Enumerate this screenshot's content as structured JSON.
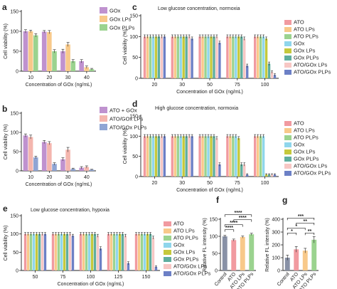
{
  "colors": {
    "axis": "#222222",
    "pink": "#f19aa0",
    "orange": "#f8c98a",
    "green": "#9bd38f",
    "purple": "#bf92cf",
    "salmon": "#f4b6ae",
    "blue": "#8fa5d4",
    "lightblue": "#8fd6ec",
    "olive": "#c5c93c",
    "teal": "#5fae9f",
    "lightpink": "#f7c7c4",
    "navy": "#6c80c6",
    "gray": "#8891a6"
  },
  "chart_data": [
    {
      "id": "a",
      "type": "bar",
      "panel_label": "a",
      "categories": [
        "10",
        "20",
        "30",
        "40"
      ],
      "series": [
        {
          "name": "GOx",
          "color": "purple",
          "values": [
            100,
            99,
            50,
            25
          ],
          "errors": [
            4,
            3,
            5,
            4
          ]
        },
        {
          "name": "GOx LPs",
          "color": "orange",
          "values": [
            100,
            98,
            67,
            10
          ],
          "errors": [
            3,
            4,
            5,
            3
          ]
        },
        {
          "name": "GOx PLPs",
          "color": "green",
          "values": [
            90,
            50,
            25,
            5
          ],
          "errors": [
            4,
            4,
            4,
            2
          ]
        }
      ],
      "xlabel": "Concentration of GOx (ng/mL)",
      "ylabel": "Cell viability (%)",
      "ylim": [
        0,
        150
      ],
      "yticks": [
        "0",
        "50",
        "100",
        "150"
      ],
      "legend": "top-right"
    },
    {
      "id": "b",
      "type": "bar",
      "panel_label": "b",
      "categories": [
        "10",
        "20",
        "30",
        "40"
      ],
      "series": [
        {
          "name": "ATO + GOx",
          "color": "purple",
          "values": [
            92,
            75,
            30,
            8
          ],
          "errors": [
            4,
            4,
            4,
            3
          ]
        },
        {
          "name": "ATO/GOx LPs",
          "color": "salmon",
          "values": [
            88,
            72,
            55,
            10
          ],
          "errors": [
            5,
            4,
            6,
            3
          ]
        },
        {
          "name": "ATO/GOx PLPs",
          "color": "blue",
          "values": [
            35,
            18,
            5,
            3
          ],
          "errors": [
            3,
            3,
            2,
            1
          ]
        }
      ],
      "xlabel": "Concentration of GOx (ng/mL)",
      "ylabel": "Cell viability (%)",
      "ylim": [
        0,
        150
      ],
      "yticks": [
        "0",
        "50",
        "100",
        "150"
      ],
      "legend": "top-right"
    },
    {
      "id": "c",
      "type": "bar",
      "panel_label": "c",
      "annotation": "Low glucose concentration, normoxia",
      "categories": [
        "20",
        "30",
        "50",
        "75",
        "100"
      ],
      "series": [
        {
          "name": "ATO",
          "color": "pink",
          "values": [
            100,
            100,
            100,
            100,
            100
          ],
          "errors": [
            4,
            4,
            4,
            4,
            4
          ]
        },
        {
          "name": "ATO LPs",
          "color": "orange",
          "values": [
            100,
            100,
            100,
            100,
            100
          ],
          "errors": [
            4,
            4,
            4,
            4,
            4
          ]
        },
        {
          "name": "ATO PLPs",
          "color": "green",
          "values": [
            100,
            100,
            100,
            100,
            100
          ],
          "errors": [
            4,
            4,
            4,
            4,
            4
          ]
        },
        {
          "name": "GOx",
          "color": "lightblue",
          "values": [
            100,
            100,
            100,
            100,
            100
          ],
          "errors": [
            4,
            4,
            4,
            4,
            4
          ]
        },
        {
          "name": "GOx LPs",
          "color": "olive",
          "values": [
            100,
            100,
            100,
            100,
            95
          ],
          "errors": [
            4,
            4,
            4,
            4,
            4
          ]
        },
        {
          "name": "GOx PLPs",
          "color": "teal",
          "values": [
            100,
            100,
            100,
            100,
            35
          ],
          "errors": [
            4,
            4,
            4,
            4,
            4
          ]
        },
        {
          "name": "ATO/GOx LPs",
          "color": "lightpink",
          "values": [
            100,
            100,
            100,
            95,
            15
          ],
          "errors": [
            4,
            4,
            4,
            4,
            3
          ]
        },
        {
          "name": "ATO/GOx PLPs",
          "color": "navy",
          "values": [
            100,
            95,
            85,
            30,
            8
          ],
          "errors": [
            4,
            4,
            4,
            4,
            3
          ]
        }
      ],
      "xlabel": "Concentration of GOx (ng/mL)",
      "ylabel": "Cell viability (%)",
      "ylim": [
        0,
        150
      ],
      "yticks": [
        "0",
        "50",
        "100",
        "150"
      ],
      "legend": "right"
    },
    {
      "id": "d",
      "type": "bar",
      "panel_label": "d",
      "annotation": "High glucose concentration, normoxia",
      "categories": [
        "20",
        "30",
        "50",
        "75",
        "100"
      ],
      "series": [
        {
          "name": "ATO",
          "color": "pink",
          "values": [
            100,
            100,
            100,
            100,
            100
          ],
          "errors": [
            4,
            4,
            4,
            4,
            4
          ]
        },
        {
          "name": "ATO LPs",
          "color": "orange",
          "values": [
            100,
            100,
            100,
            100,
            100
          ],
          "errors": [
            4,
            4,
            4,
            4,
            4
          ]
        },
        {
          "name": "ATO PLPs",
          "color": "green",
          "values": [
            100,
            100,
            100,
            100,
            100
          ],
          "errors": [
            4,
            4,
            4,
            4,
            4
          ]
        },
        {
          "name": "GOx",
          "color": "lightblue",
          "values": [
            100,
            100,
            100,
            100,
            100
          ],
          "errors": [
            4,
            4,
            4,
            4,
            4
          ]
        },
        {
          "name": "GOx LPs",
          "color": "olive",
          "values": [
            100,
            100,
            100,
            95,
            5
          ],
          "errors": [
            4,
            4,
            4,
            4,
            2
          ]
        },
        {
          "name": "GOx PLPs",
          "color": "teal",
          "values": [
            100,
            100,
            100,
            30,
            5
          ],
          "errors": [
            4,
            4,
            4,
            4,
            2
          ]
        },
        {
          "name": "ATO/GOx LPs",
          "color": "lightpink",
          "values": [
            100,
            100,
            95,
            30,
            5
          ],
          "errors": [
            4,
            4,
            4,
            4,
            2
          ]
        },
        {
          "name": "ATO/GOx PLPs",
          "color": "navy",
          "values": [
            100,
            100,
            30,
            5,
            5
          ],
          "errors": [
            4,
            4,
            4,
            2,
            2
          ]
        }
      ],
      "xlabel": "Concentration of GOx (ng/mL)",
      "ylabel": "Cell viability (%)",
      "ylim": [
        0,
        150
      ],
      "yticks": [
        "0",
        "50",
        "100",
        "150"
      ],
      "legend": "right"
    },
    {
      "id": "e",
      "type": "bar",
      "panel_label": "e",
      "annotation": "Low glucose concentration, hypoxia",
      "categories": [
        "50",
        "75",
        "100",
        "125",
        "150"
      ],
      "series": [
        {
          "name": "ATO",
          "color": "pink",
          "values": [
            100,
            100,
            100,
            100,
            100
          ],
          "errors": [
            4,
            4,
            4,
            4,
            4
          ]
        },
        {
          "name": "ATO LPs",
          "color": "orange",
          "values": [
            100,
            100,
            100,
            100,
            100
          ],
          "errors": [
            4,
            4,
            4,
            4,
            4
          ]
        },
        {
          "name": "ATO PLPs",
          "color": "green",
          "values": [
            100,
            100,
            100,
            100,
            100
          ],
          "errors": [
            4,
            4,
            4,
            4,
            4
          ]
        },
        {
          "name": "GOx",
          "color": "lightblue",
          "values": [
            100,
            100,
            100,
            100,
            100
          ],
          "errors": [
            4,
            4,
            4,
            4,
            4
          ]
        },
        {
          "name": "GOx LPs",
          "color": "olive",
          "values": [
            100,
            100,
            100,
            100,
            100
          ],
          "errors": [
            4,
            4,
            4,
            4,
            4
          ]
        },
        {
          "name": "GOx PLPs",
          "color": "teal",
          "values": [
            100,
            100,
            100,
            100,
            100
          ],
          "errors": [
            4,
            4,
            4,
            4,
            4
          ]
        },
        {
          "name": "ATO/GOx LPs",
          "color": "lightpink",
          "values": [
            100,
            100,
            95,
            95,
            90
          ],
          "errors": [
            4,
            4,
            4,
            4,
            4
          ]
        },
        {
          "name": "ATO/GOx PLPs",
          "color": "navy",
          "values": [
            100,
            95,
            60,
            20,
            10
          ],
          "errors": [
            4,
            4,
            5,
            4,
            3
          ]
        }
      ],
      "xlabel": "Concentration of GOx (ng/mL)",
      "ylabel": "Cell viability (%)",
      "ylim": [
        0,
        150
      ],
      "yticks": [
        "0",
        "50",
        "100",
        "150"
      ],
      "legend": "right"
    },
    {
      "id": "f",
      "type": "bar",
      "panel_label": "f",
      "categories": [
        "Control",
        "ATO",
        "ATO LPs",
        "ATO PLPs"
      ],
      "series": [
        {
          "name": "",
          "colors": [
            "gray",
            "pink",
            "orange",
            "green"
          ],
          "values": [
            100,
            89,
            98,
            106
          ],
          "errors": [
            3,
            3,
            3,
            3
          ]
        }
      ],
      "ylabel": "Relative FL intensity (%)",
      "ylim": [
        0,
        150
      ],
      "yticks": [
        "0",
        "50",
        "100",
        "150"
      ],
      "significance": [
        {
          "from": 0,
          "to": 1,
          "label": "****"
        },
        {
          "from": 0,
          "to": 2,
          "label": "****"
        },
        {
          "from": 0,
          "to": 3,
          "label": "****"
        },
        {
          "from": 1,
          "to": 3,
          "label": "****"
        }
      ]
    },
    {
      "id": "g",
      "type": "bar",
      "panel_label": "g",
      "categories": [
        "Control",
        "ATO",
        "ATO LPs",
        "ATO PLPs"
      ],
      "series": [
        {
          "name": "",
          "colors": [
            "gray",
            "pink",
            "orange",
            "green"
          ],
          "values": [
            100,
            165,
            155,
            240
          ],
          "errors": [
            20,
            22,
            18,
            25
          ]
        }
      ],
      "ylabel": "Relative FL intensity (%)",
      "ylim": [
        0,
        400
      ],
      "yticks": [
        "0",
        "100",
        "200",
        "300",
        "400"
      ],
      "significance": [
        {
          "from": 0,
          "to": 1,
          "label": "*"
        },
        {
          "from": 0,
          "to": 2,
          "label": "*"
        },
        {
          "from": 2,
          "to": 3,
          "label": "**"
        },
        {
          "from": 1,
          "to": 3,
          "label": "**"
        },
        {
          "from": 0,
          "to": 3,
          "label": "***"
        }
      ]
    }
  ]
}
